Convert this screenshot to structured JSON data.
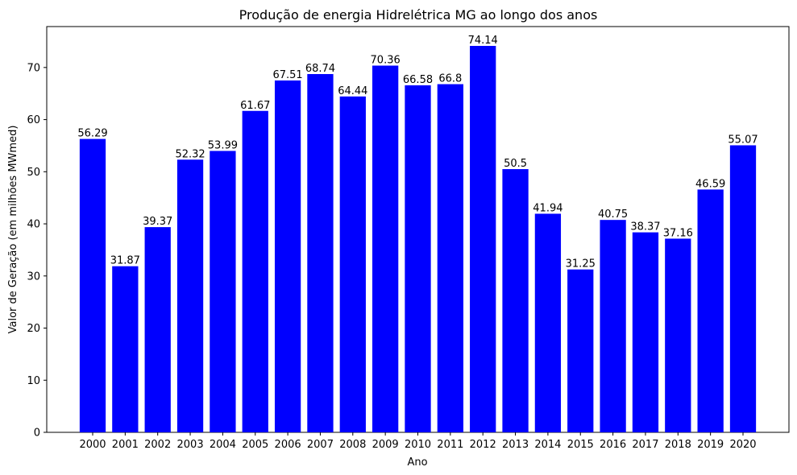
{
  "chart_data": {
    "type": "bar",
    "title": "Produção de energia Hidrelétrica MG ao longo dos anos",
    "xlabel": "Ano",
    "ylabel": "Valor de Geração (em milhões MWmed)",
    "categories": [
      "2000",
      "2001",
      "2002",
      "2003",
      "2004",
      "2005",
      "2006",
      "2007",
      "2008",
      "2009",
      "2010",
      "2011",
      "2012",
      "2013",
      "2014",
      "2015",
      "2016",
      "2017",
      "2018",
      "2019",
      "2020"
    ],
    "values": [
      56.29,
      31.87,
      39.37,
      52.32,
      53.99,
      61.67,
      67.51,
      68.74,
      64.44,
      70.36,
      66.58,
      66.8,
      74.14,
      50.5,
      41.94,
      31.25,
      40.75,
      38.37,
      37.16,
      46.59,
      55.07
    ],
    "data_labels": [
      "56.29",
      "31.87",
      "39.37",
      "52.32",
      "53.99",
      "61.67",
      "67.51",
      "68.74",
      "64.44",
      "70.36",
      "66.58",
      "66.8",
      "74.14",
      "50.5",
      "41.94",
      "31.25",
      "40.75",
      "38.37",
      "37.16",
      "46.59",
      "55.07"
    ],
    "yticks": [
      0,
      10,
      20,
      30,
      40,
      50,
      60,
      70
    ],
    "ylim": [
      0,
      77.85
    ],
    "grid": false,
    "bar_color": "#0000ff"
  }
}
